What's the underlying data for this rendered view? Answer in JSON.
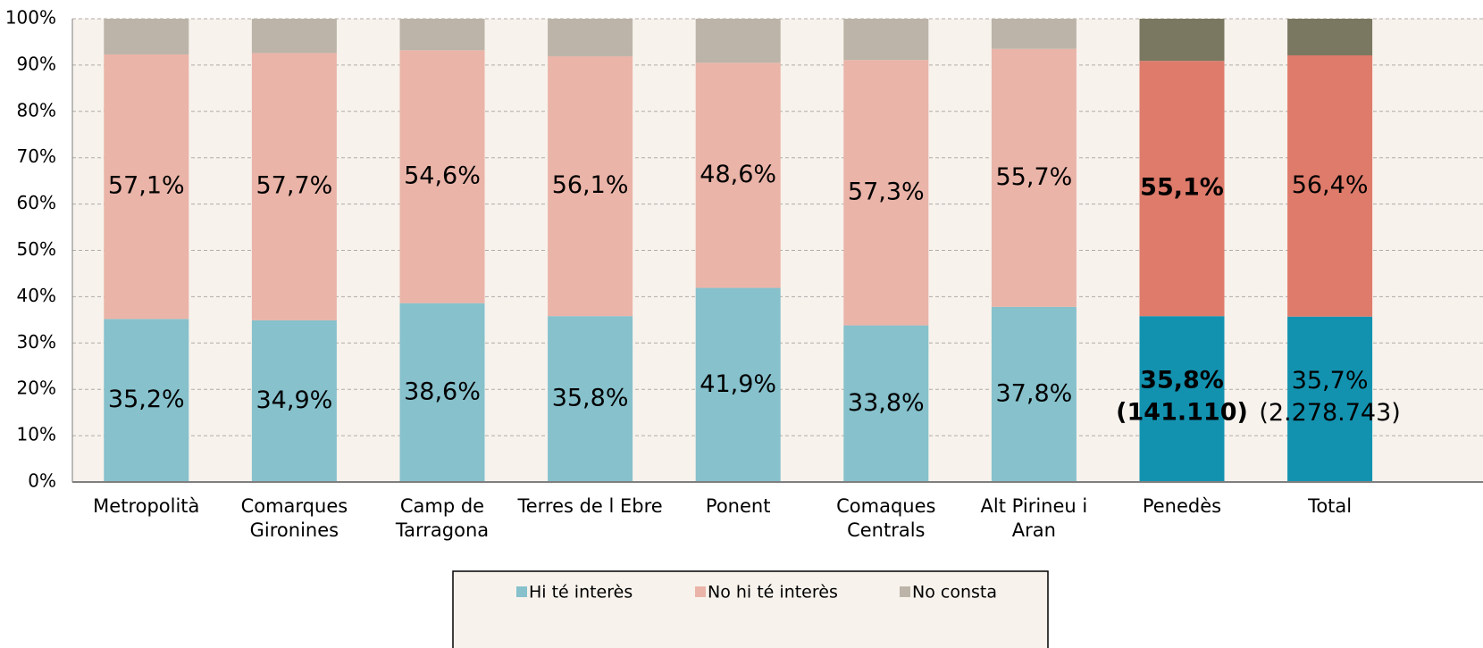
{
  "chart_data": {
    "type": "stacked_bar",
    "categories": [
      "Metropolità",
      "Comarques Gironines",
      "Camp de Tarragona",
      "Terres de l Ebre",
      "Ponent",
      "Comaques Centrals",
      "Alt Pirineu i Aran",
      "Penedès",
      "Total"
    ],
    "series": [
      {
        "name": "Hi té interès",
        "color": "#86c1cc",
        "highlight_color": "#1392b0",
        "values": [
          35.2,
          34.9,
          38.6,
          35.8,
          41.9,
          33.8,
          37.8,
          35.8,
          35.7
        ],
        "value_labels": [
          "35,2%",
          "34,9%",
          "38,6%",
          "35,8%",
          "41,9%",
          "33,8%",
          "37,8%",
          "35,8%",
          "35,7%"
        ]
      },
      {
        "name": "No hi té interès",
        "color": "#eab4a8",
        "highlight_color": "#df7b6b",
        "values": [
          57.1,
          57.7,
          54.6,
          56.1,
          48.6,
          57.3,
          55.7,
          55.1,
          56.4
        ],
        "value_labels": [
          "57,1%",
          "57,7%",
          "54,6%",
          "56,1%",
          "48,6%",
          "57,3%",
          "55,7%",
          "55,1%",
          "56,4%"
        ]
      },
      {
        "name": "No consta",
        "color": "#bcb4a8",
        "highlight_color": "#7a7860",
        "values": [
          7.7,
          7.4,
          6.8,
          8.1,
          9.5,
          8.9,
          6.5,
          9.1,
          7.9
        ]
      }
    ],
    "highlight": [
      "Penedès",
      "Total"
    ],
    "emphasis_category": "Penedès",
    "count_labels": [
      {
        "category": "Penedès",
        "label": "(141.110)"
      },
      {
        "category": "Total",
        "label": "(2.278.743)"
      }
    ],
    "ylim": [
      0,
      100
    ],
    "yticks": [
      {
        "value": 0,
        "label": "0%"
      },
      {
        "value": 10,
        "label": "10%"
      },
      {
        "value": 20,
        "label": "20%"
      },
      {
        "value": 30,
        "label": "30%"
      },
      {
        "value": 40,
        "label": "40%"
      },
      {
        "value": 50,
        "label": "50%"
      },
      {
        "value": 60,
        "label": "60%"
      },
      {
        "value": 70,
        "label": "70%"
      },
      {
        "value": 80,
        "label": "80%"
      },
      {
        "value": 90,
        "label": "90%"
      },
      {
        "value": 100,
        "label": "100%"
      }
    ],
    "grid": true,
    "legend": "bottom"
  }
}
